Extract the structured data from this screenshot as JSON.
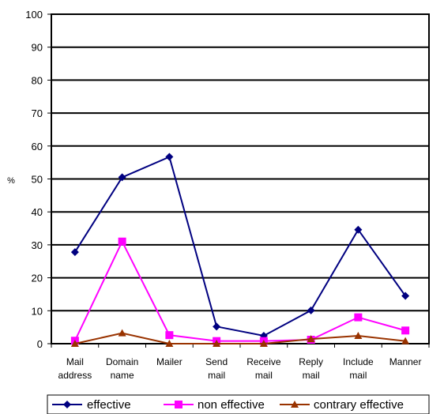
{
  "chart_data": {
    "type": "line",
    "title": "",
    "xlabel": "",
    "ylabel": "%",
    "ylim": [
      0,
      100
    ],
    "ytick_step": 10,
    "grid": "horizontal",
    "legend_position": "bottom",
    "categories": [
      [
        "Mail",
        "address"
      ],
      [
        "Domain",
        "name"
      ],
      [
        "Mailer"
      ],
      [
        "Send",
        "mail"
      ],
      [
        "Receive",
        "mail"
      ],
      [
        "Reply",
        "mail"
      ],
      [
        "Include",
        "mail"
      ],
      [
        "Manner"
      ]
    ],
    "series": [
      {
        "name": "effective",
        "color": "#000080",
        "marker": "diamond",
        "values": [
          27.8,
          50.5,
          56.7,
          5.2,
          2.4,
          10.1,
          34.6,
          14.5
        ]
      },
      {
        "name": "non effective",
        "color": "#ff00ff",
        "marker": "square",
        "values": [
          0.9,
          31.0,
          2.6,
          0.8,
          0.8,
          1.2,
          8.0,
          4.0
        ]
      },
      {
        "name": "contrary effective",
        "color": "#993300",
        "marker": "triangle",
        "values": [
          0.0,
          3.2,
          0.0,
          0.0,
          0.0,
          1.4,
          2.4,
          0.8
        ]
      }
    ]
  }
}
